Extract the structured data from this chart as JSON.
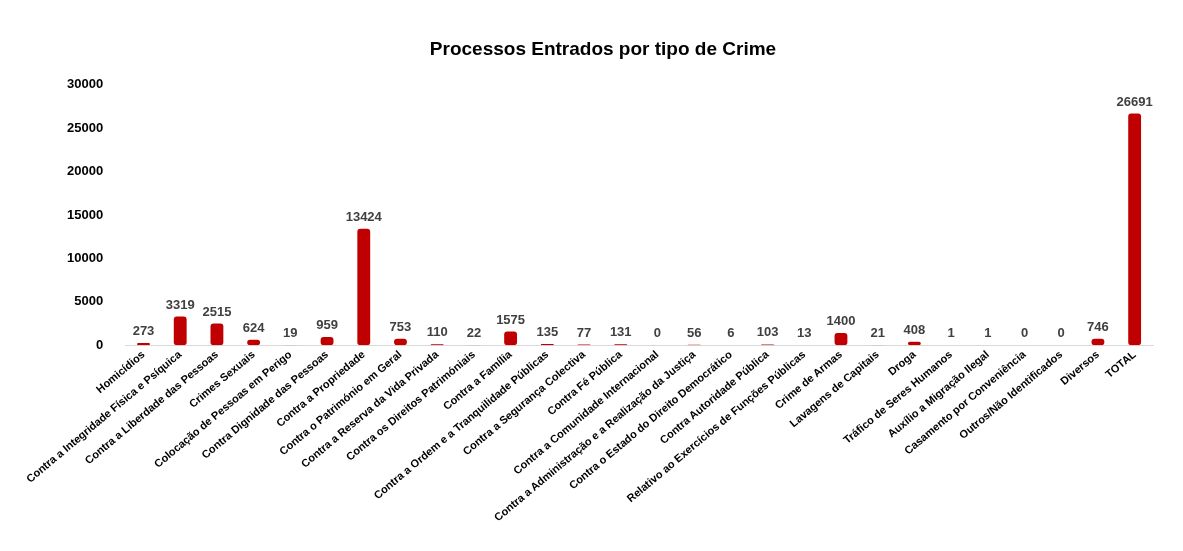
{
  "chart_data": {
    "type": "bar",
    "title": "Processos Entrados por tipo de Crime",
    "categories": [
      "Homicídios",
      "Contra a Integridade Física e Psíquica",
      "Contra a Liberdade das Pessoas",
      "Crimes Sexuais",
      "Colocação de Pessoas em Perigo",
      "Contra Dignidade das Pessoas",
      "Contra a Propriedade",
      "Contra o Património em Geral",
      "Contra a Reserva da Vida Privada",
      "Contra os Direitos Patrimóniais",
      "Contra a Família",
      "Contra a Ordem e a Tranquilidade Públicas",
      "Contra a Segurança Colectiva",
      "Contra Fé Pública",
      "Contra a Comunidade Internacional",
      "Contra a Administração e a Realização da Justiça",
      "Contra o Estado do Direito Democrático",
      "Contra Autoridade Pública",
      "Relativo ao Exercícios de Funções Públicas",
      "Crime de Armas",
      "Lavagens de Capitais",
      "Droga",
      "Tráfico de Seres Humanos",
      "Auxílio a Migração Ilegal",
      "Casamento por Conveniência",
      "Outros/Não Identificados",
      "Diversos",
      "TOTAL"
    ],
    "values": [
      273,
      3319,
      2515,
      624,
      19,
      959,
      13424,
      753,
      110,
      22,
      1575,
      135,
      77,
      131,
      0,
      56,
      6,
      103,
      13,
      1400,
      21,
      408,
      1,
      1,
      0,
      0,
      746,
      26691
    ],
    "color": "#c00000",
    "ylim": [
      0,
      30000
    ],
    "yticks": [
      0,
      5000,
      10000,
      15000,
      20000,
      25000,
      30000
    ],
    "grid": false,
    "data_labels": true
  }
}
